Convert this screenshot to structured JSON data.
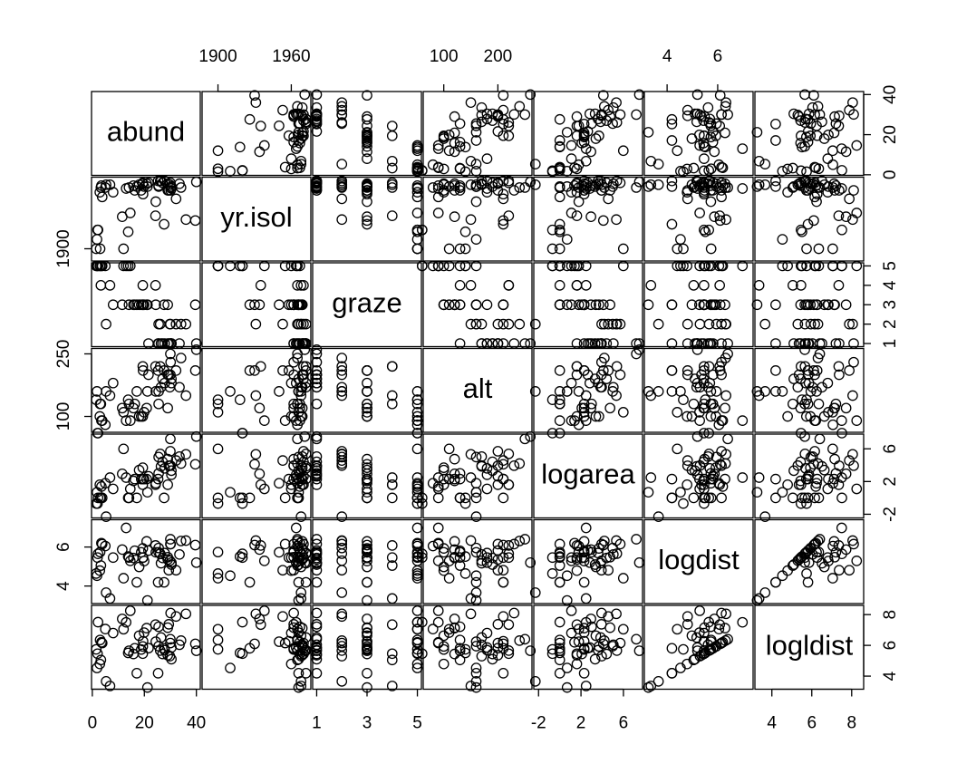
{
  "chart_data": {
    "type": "scatter_matrix",
    "variables": [
      {
        "name": "abund",
        "lim": [
          -0.3,
          41.5
        ],
        "xticks": [
          0,
          20,
          40
        ],
        "yticks": [
          0,
          20,
          40
        ],
        "values": [
          5.3,
          2.0,
          1.5,
          17.1,
          13.8,
          14.1,
          3.8,
          2.2,
          3.3,
          3.0,
          27.6,
          1.8,
          21.2,
          14.6,
          8.0,
          3.5,
          29.0,
          2.9,
          24.3,
          19.4,
          24.4,
          5.0,
          15.8,
          25.3,
          19.5,
          20.9,
          16.3,
          18.8,
          19.9,
          13.0,
          6.8,
          21.6,
          30.4,
          11.5,
          25.5,
          30.4,
          18.0,
          27.8,
          19.4,
          26.4,
          29.4,
          34.1,
          27.0,
          32.2,
          29.0,
          33.5,
          39.6,
          30.1,
          25.5,
          26.1,
          36.0,
          30.0,
          29.8,
          12.0,
          30.0,
          40.0
        ]
      },
      {
        "name": "yr.isol",
        "lim": [
          1887,
          1976
        ],
        "xticks": [
          1900,
          1960
        ],
        "yticks": [
          1900
        ],
        "values": [
          1968,
          1920,
          1900,
          1966,
          1918,
          1965,
          1955,
          1920,
          1965,
          1900,
          1926,
          1910,
          1966,
          1938,
          1960,
          1967,
          1969,
          1960,
          1935,
          1970,
          1950,
          1965,
          1967,
          1972,
          1958,
          1969,
          1962,
          1962,
          1966,
          1964,
          1968,
          1970,
          1964,
          1934,
          1967,
          1966,
          1968,
          1972,
          1969,
          1972,
          1962,
          1965,
          1970,
          1953,
          1962,
          1969,
          1930,
          1962,
          1966,
          1972,
          1931,
          1970,
          1968,
          1900,
          1965,
          1971
        ]
      },
      {
        "name": "graze",
        "lim": [
          0.84,
          5.16
        ],
        "xticks": [
          1,
          3,
          5
        ],
        "yticks": [
          1,
          2,
          3,
          4,
          5
        ],
        "values": [
          2,
          5,
          5,
          3,
          5,
          3,
          5,
          5,
          4,
          5,
          3,
          5,
          3,
          5,
          3,
          5,
          1,
          5,
          4,
          4,
          3,
          5,
          3,
          1,
          3,
          3,
          3,
          3,
          3,
          5,
          4,
          1,
          1,
          3,
          1,
          1,
          3,
          1,
          3,
          1,
          1,
          2,
          1,
          2,
          3,
          1,
          3,
          1,
          2,
          2,
          2,
          2,
          2,
          5,
          1,
          1
        ]
      },
      {
        "name": "alt",
        "lim": [
          62,
          263
        ],
        "xticks": [
          100,
          200
        ],
        "yticks": [
          100,
          250
        ],
        "values": [
          160,
          60,
          140,
          160,
          140,
          130,
          90,
          60,
          130,
          130,
          210,
          160,
          160,
          90,
          180,
          90,
          200,
          100,
          220,
          220,
          160,
          80,
          120,
          210,
          210,
          120,
          130,
          100,
          110,
          90,
          150,
          200,
          180,
          120,
          130,
          190,
          100,
          180,
          100,
          170,
          200,
          240,
          190,
          210,
          120,
          170,
          210,
          230,
          160,
          220,
          150,
          200,
          170,
          110,
          250,
          260
        ]
      },
      {
        "name": "logarea",
        "lim": [
          -2.45,
          7.8
        ],
        "xticks": [
          -2,
          2,
          6
        ],
        "yticks": [
          -2,
          2,
          6
        ],
        "values": [
          -2.3,
          -0.69,
          -0.69,
          0,
          0,
          0,
          0,
          0,
          0,
          0,
          0,
          0.69,
          0.69,
          1.1,
          1.1,
          1.39,
          1.61,
          1.61,
          1.61,
          1.61,
          1.79,
          1.79,
          2.08,
          2.3,
          2.3,
          2.3,
          2.3,
          2.3,
          2.3,
          2.48,
          2.48,
          2.64,
          2.83,
          2.94,
          3.0,
          3.33,
          3.4,
          3.61,
          3.69,
          3.85,
          3.93,
          4.2,
          4.41,
          4.57,
          4.74,
          5.05,
          4.11,
          3.94,
          4.99,
          5.38,
          5.33,
          5.7,
          3.95,
          5.99,
          7.21,
          7.5
        ]
      },
      {
        "name": "logdist",
        "lim": [
          3.1,
          7.4
        ],
        "xticks": [
          4,
          6
        ],
        "yticks": [
          4,
          6
        ],
        "values": [
          3.66,
          5.46,
          4.64,
          4.19,
          5.51,
          5.46,
          6.15,
          5.65,
          5.05,
          5.74,
          4.19,
          4.53,
          3.26,
          5.29,
          5.46,
          6.2,
          5.36,
          4.79,
          6.08,
          5.46,
          5.73,
          6.05,
          5.44,
          4.19,
          5.46,
          6.29,
          5.81,
          5.73,
          5.28,
          6.98,
          3.36,
          5.82,
          5.2,
          5.87,
          5.73,
          5.1,
          4.98,
          5.69,
          5.93,
          5.17,
          4.81,
          6.31,
          5.44,
          4.81,
          5.48,
          5.62,
          6.1,
          6.15,
          5.95,
          5.66,
          6.33,
          6.15,
          5.3,
          4.4,
          6.4,
          5.2
        ]
      },
      {
        "name": "logldist",
        "lim": [
          3.15,
          8.6
        ],
        "xticks": [
          4,
          6,
          8
        ],
        "yticks": [
          4,
          6,
          8
        ],
        "values": [
          3.66,
          5.46,
          5.74,
          4.19,
          5.51,
          5.65,
          6.15,
          7.51,
          5.05,
          6.35,
          5.81,
          4.53,
          3.26,
          8.25,
          6.8,
          6.2,
          5.36,
          4.79,
          7.35,
          5.46,
          6.24,
          7.06,
          5.44,
          4.19,
          6.27,
          7.12,
          5.81,
          5.73,
          6.83,
          7.5,
          3.36,
          5.82,
          5.86,
          7.72,
          7.21,
          5.1,
          6.63,
          5.69,
          5.93,
          6.51,
          7.37,
          6.31,
          5.44,
          7.88,
          7.15,
          6.04,
          6.1,
          8.1,
          5.95,
          5.66,
          8.05,
          6.15,
          5.3,
          7.05,
          6.4,
          5.65
        ]
      }
    ]
  }
}
